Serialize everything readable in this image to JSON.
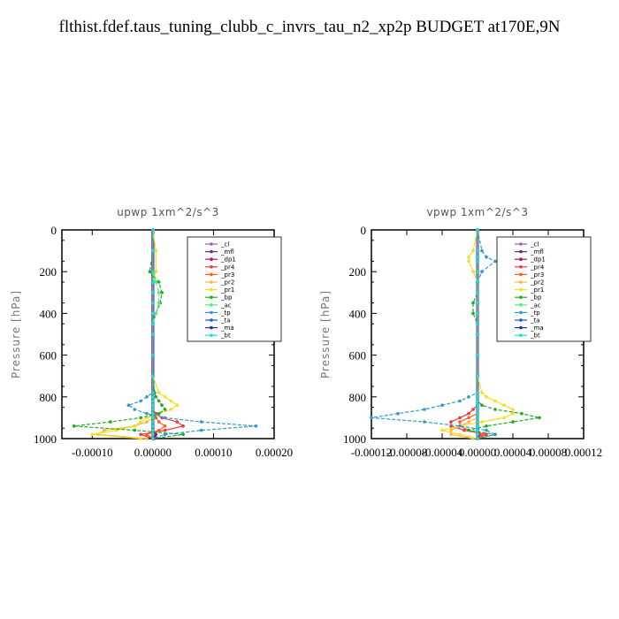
{
  "title": "flthist.fdef.taus_tuning_clubb_c_invrs_tau_n2_xp2p  BUDGET at170E,9N",
  "legend_names": [
    "_cl",
    "_mfl",
    "_dp1",
    "_pr4",
    "_pr3",
    "_pr2",
    "_pr1",
    "_bp",
    "_ac",
    "_tp",
    "_ta",
    "_ma",
    "_bt"
  ],
  "series_colors": [
    "#9b59d0",
    "#6a2a8a",
    "#b0106a",
    "#e83a3a",
    "#ff5a2a",
    "#ffb347",
    "#f0e020",
    "#22aa22",
    "#55ee77",
    "#3399cc",
    "#2255cc",
    "#223399",
    "#22dddd"
  ],
  "chart_data": [
    {
      "type": "line",
      "title": "upwp   1xm^2/s^3",
      "ylabel": "Pressure [hPa]",
      "xlim": [
        -0.00015,
        0.0002
      ],
      "ylim": [
        1000,
        0
      ],
      "xticks": [
        -0.0001,
        0.0,
        0.0001,
        0.0002
      ],
      "xtick_labels": [
        "-0.00010",
        "0.00000",
        "0.00010",
        "0.00020"
      ],
      "yticks": [
        0,
        200,
        400,
        600,
        800,
        1000
      ],
      "legend": "top-right",
      "p": [
        0,
        100,
        200,
        250,
        300,
        350,
        400,
        450,
        500,
        600,
        700,
        780,
        800,
        820,
        840,
        860,
        880,
        900,
        920,
        940,
        960,
        980,
        1000
      ],
      "series": [
        {
          "name": "_cl",
          "values": [
            0,
            0,
            0,
            0,
            0,
            0,
            0,
            0,
            0,
            0,
            0,
            0,
            0,
            0,
            0,
            0,
            0,
            0,
            0,
            0,
            0,
            0,
            0
          ]
        },
        {
          "name": "_mfl",
          "values": [
            0,
            0,
            0,
            0,
            0,
            0,
            0,
            0,
            0,
            0,
            0,
            0,
            0,
            0,
            0,
            0,
            0,
            0,
            0,
            0,
            0,
            0,
            0
          ]
        },
        {
          "name": "_dp1",
          "values": [
            0,
            0,
            0,
            0,
            0,
            0,
            0,
            0,
            0,
            0,
            0,
            0,
            0,
            0,
            0,
            0,
            0,
            0,
            0,
            0,
            0,
            5e-06,
            2e-06
          ]
        },
        {
          "name": "_pr4",
          "values": [
            0,
            0,
            0,
            0,
            0,
            0,
            0,
            0,
            0,
            0,
            0,
            0,
            0,
            0,
            0,
            0,
            5e-06,
            1.5e-05,
            4e-05,
            5e-05,
            2e-05,
            -2e-05,
            0
          ]
        },
        {
          "name": "_pr3",
          "values": [
            0,
            0,
            0,
            0,
            0,
            0,
            0,
            0,
            0,
            0,
            0,
            0,
            0,
            0,
            0,
            0,
            0,
            5e-06,
            1e-05,
            2e-05,
            1e-05,
            -1e-05,
            0
          ]
        },
        {
          "name": "_pr2",
          "values": [
            0,
            0,
            0,
            0,
            0,
            0,
            0,
            0,
            0,
            0,
            0,
            0,
            0,
            0,
            0,
            0,
            0,
            0,
            -1e-05,
            -3e-05,
            -8e-05,
            -9e-05,
            -1e-05
          ]
        },
        {
          "name": "_pr1",
          "values": [
            0,
            5e-06,
            5e-06,
            0,
            0,
            0,
            0,
            0,
            0,
            0,
            0,
            1e-05,
            2e-05,
            3e-05,
            4e-05,
            3e-05,
            1e-05,
            -1e-05,
            -2e-05,
            -3e-05,
            -6e-05,
            -0.0001,
            -2e-05
          ]
        },
        {
          "name": "_bp",
          "values": [
            0,
            0,
            -5e-06,
            1e-05,
            1.5e-05,
            1.2e-05,
            5e-06,
            0,
            0,
            0,
            0,
            3e-06,
            5e-06,
            1e-05,
            1.5e-05,
            2e-05,
            1e-05,
            -2e-05,
            -7e-05,
            -0.00013,
            -3e-05,
            5e-05,
            0
          ]
        },
        {
          "name": "_ac",
          "values": [
            0,
            0,
            0,
            5e-06,
            1e-05,
            1e-05,
            5e-06,
            0,
            0,
            0,
            0,
            0,
            0,
            0,
            0,
            0,
            0,
            0,
            0,
            0,
            0,
            0,
            0
          ]
        },
        {
          "name": "_tp",
          "values": [
            0,
            0,
            0,
            0,
            0,
            0,
            0,
            0,
            0,
            0,
            0,
            0,
            -1e-05,
            -2e-05,
            -4e-05,
            -3e-05,
            -1e-05,
            2e-05,
            8e-05,
            0.00017,
            8e-05,
            2e-05,
            0
          ]
        },
        {
          "name": "_ta",
          "values": [
            0,
            0,
            0,
            0,
            0,
            0,
            0,
            0,
            0,
            0,
            0,
            0,
            0,
            0,
            0,
            0,
            0,
            0,
            0,
            0,
            0,
            0,
            0
          ]
        },
        {
          "name": "_ma",
          "values": [
            0,
            0,
            0,
            0,
            0,
            0,
            0,
            0,
            0,
            0,
            0,
            0,
            0,
            0,
            0,
            0,
            0,
            0,
            0,
            0,
            0,
            0,
            0
          ]
        },
        {
          "name": "_bt",
          "values": [
            0,
            0,
            0,
            0,
            0,
            0,
            0,
            0,
            0,
            0,
            0,
            0,
            0,
            0,
            0,
            0,
            0,
            0,
            0,
            0,
            0,
            0,
            0
          ]
        }
      ]
    },
    {
      "type": "line",
      "title": "vpwp   1xm^2/s^3",
      "ylabel": "Pressure [hPa]",
      "xlim": [
        -0.00012,
        0.00012
      ],
      "ylim": [
        1000,
        0
      ],
      "xticks": [
        -0.00012,
        -8e-05,
        -4e-05,
        0.0,
        4e-05,
        8e-05,
        0.00012
      ],
      "xtick_labels": [
        "-0.00012",
        "-0.00008",
        "-0.00004",
        "0.00000",
        "0.00004",
        "0.00008",
        "0.00012"
      ],
      "yticks": [
        0,
        200,
        400,
        600,
        800,
        1000
      ],
      "legend": "top-right",
      "p": [
        0,
        100,
        130,
        150,
        200,
        250,
        300,
        350,
        400,
        450,
        500,
        600,
        700,
        780,
        800,
        820,
        840,
        860,
        880,
        900,
        920,
        940,
        960,
        980,
        1000
      ],
      "series": [
        {
          "name": "_cl",
          "values": [
            0,
            0,
            0,
            0,
            0,
            0,
            0,
            0,
            0,
            0,
            0,
            0,
            0,
            0,
            0,
            0,
            0,
            0,
            0,
            0,
            0,
            0,
            0,
            0,
            0
          ]
        },
        {
          "name": "_mfl",
          "values": [
            0,
            0,
            0,
            0,
            0,
            0,
            0,
            0,
            0,
            0,
            0,
            0,
            0,
            0,
            0,
            0,
            0,
            0,
            0,
            0,
            0,
            0,
            0,
            0,
            0
          ]
        },
        {
          "name": "_dp1",
          "values": [
            0,
            0,
            0,
            0,
            0,
            0,
            0,
            0,
            0,
            0,
            0,
            0,
            0,
            0,
            0,
            0,
            0,
            0,
            0,
            0,
            0,
            0,
            0,
            3e-06,
            0
          ]
        },
        {
          "name": "_pr4",
          "values": [
            0,
            0,
            0,
            0,
            0,
            0,
            0,
            0,
            0,
            0,
            0,
            0,
            0,
            0,
            0,
            0,
            0,
            -5e-06,
            -1e-05,
            -2e-05,
            -3e-05,
            -3e-05,
            -1.5e-05,
            1e-05,
            0
          ]
        },
        {
          "name": "_pr3",
          "values": [
            0,
            0,
            0,
            0,
            0,
            0,
            0,
            0,
            0,
            0,
            0,
            0,
            0,
            0,
            0,
            0,
            0,
            0,
            0,
            -1e-05,
            -2e-05,
            -2e-05,
            -1e-05,
            5e-06,
            0
          ]
        },
        {
          "name": "_pr2",
          "values": [
            0,
            0,
            0,
            0,
            0,
            0,
            0,
            0,
            0,
            0,
            0,
            0,
            0,
            0,
            0,
            0,
            0,
            0,
            0,
            0,
            -1e-05,
            -2e-05,
            -3e-05,
            -3e-05,
            -5e-06
          ]
        },
        {
          "name": "_pr1",
          "values": [
            0,
            -5e-06,
            -1e-05,
            -1e-05,
            -5e-06,
            0,
            0,
            0,
            0,
            0,
            0,
            0,
            0,
            5e-06,
            1e-05,
            2e-05,
            3e-05,
            4e-05,
            4e-05,
            3e-05,
            5e-06,
            -2e-05,
            -4e-05,
            -2e-05,
            0
          ]
        },
        {
          "name": "_bp",
          "values": [
            0,
            0,
            0,
            0,
            0,
            0,
            0,
            -5e-06,
            -5e-06,
            0,
            0,
            0,
            0,
            0,
            0,
            0,
            5e-06,
            2e-05,
            5e-05,
            7e-05,
            4e-05,
            1e-05,
            -1e-05,
            2e-05,
            0
          ]
        },
        {
          "name": "_ac",
          "values": [
            0,
            0,
            0,
            0,
            0,
            0,
            0,
            0,
            0,
            0,
            0,
            0,
            0,
            0,
            0,
            0,
            0,
            0,
            0,
            0,
            0,
            0,
            0,
            0,
            0
          ]
        },
        {
          "name": "_tp",
          "values": [
            0,
            5e-06,
            1e-05,
            2e-05,
            5e-06,
            0,
            0,
            0,
            0,
            0,
            0,
            0,
            0,
            0,
            -1e-05,
            -2e-05,
            -4e-05,
            -6e-05,
            -9e-05,
            -0.00012,
            -6e-05,
            -2e-05,
            1e-05,
            2e-05,
            0
          ]
        },
        {
          "name": "_ta",
          "values": [
            0,
            0,
            0,
            0,
            0,
            0,
            0,
            0,
            0,
            0,
            0,
            0,
            0,
            0,
            0,
            0,
            0,
            0,
            0,
            0,
            0,
            0,
            0,
            0,
            0
          ]
        },
        {
          "name": "_ma",
          "values": [
            0,
            0,
            0,
            0,
            0,
            0,
            0,
            0,
            0,
            0,
            0,
            0,
            0,
            0,
            0,
            0,
            0,
            0,
            0,
            0,
            0,
            0,
            0,
            0,
            0
          ]
        },
        {
          "name": "_bt",
          "values": [
            0,
            0,
            0,
            0,
            0,
            0,
            0,
            0,
            0,
            0,
            0,
            0,
            0,
            0,
            0,
            0,
            0,
            0,
            0,
            0,
            0,
            0,
            0,
            0,
            0
          ]
        }
      ]
    }
  ]
}
